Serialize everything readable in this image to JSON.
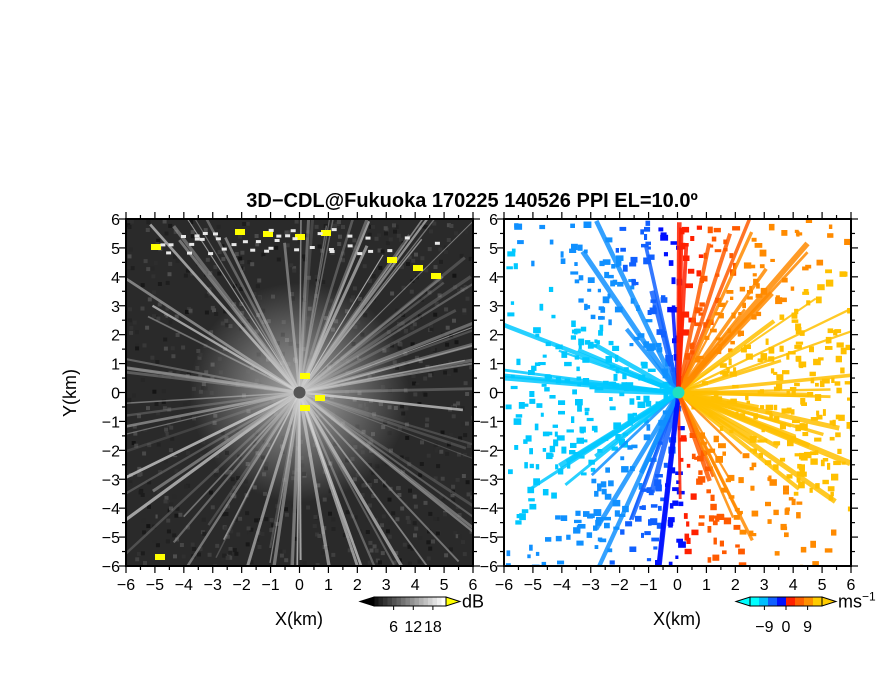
{
  "chart_data": {
    "title": "3D−CDL@Fukuoka 170225 140526 PPI EL=10.0º",
    "panels": [
      {
        "name": "left-panel",
        "type": "heatmap",
        "xlabel": "X(km)",
        "ylabel": "Y(km)",
        "xlim": [
          -6,
          6
        ],
        "ylim": [
          -6,
          6
        ],
        "xticks": [
          "−6",
          "−5",
          "−4",
          "−3",
          "−2",
          "−1",
          "0",
          "1",
          "2",
          "3",
          "4",
          "5",
          "6"
        ],
        "yticks": [
          "6",
          "5",
          "4",
          "3",
          "2",
          "1",
          "0",
          "−1",
          "−2",
          "−3",
          "−4",
          "−5",
          "−6"
        ],
        "colorbar": {
          "unit": "dB",
          "ticks": [
            6,
            12,
            18
          ],
          "range": [
            0,
            22
          ],
          "colors": [
            "#000000",
            "#404040",
            "#808080",
            "#c0c0c0",
            "#ffffff",
            "#ffff00"
          ]
        }
      },
      {
        "name": "right-panel",
        "type": "heatmap",
        "xlabel": "X(km)",
        "ylabel": "",
        "xlim": [
          -6,
          6
        ],
        "ylim": [
          -6,
          6
        ],
        "xticks": [
          "−6",
          "−5",
          "−4",
          "−3",
          "−2",
          "−1",
          "0",
          "1",
          "2",
          "3",
          "4",
          "5",
          "6"
        ],
        "yticks": [
          "6",
          "5",
          "4",
          "3",
          "2",
          "1",
          "0",
          "−1",
          "−2",
          "−3",
          "−4",
          "−5",
          "−6"
        ],
        "colorbar": {
          "unit": "ms",
          "unit_exp": "−1",
          "ticks": [
            -9,
            0,
            9
          ],
          "range": [
            -15,
            15
          ],
          "colors": [
            "#00ffff",
            "#00bfff",
            "#1060ff",
            "#0010ff",
            "#ff2000",
            "#ff6000",
            "#ff9000",
            "#ffcc00"
          ]
        }
      }
    ]
  }
}
